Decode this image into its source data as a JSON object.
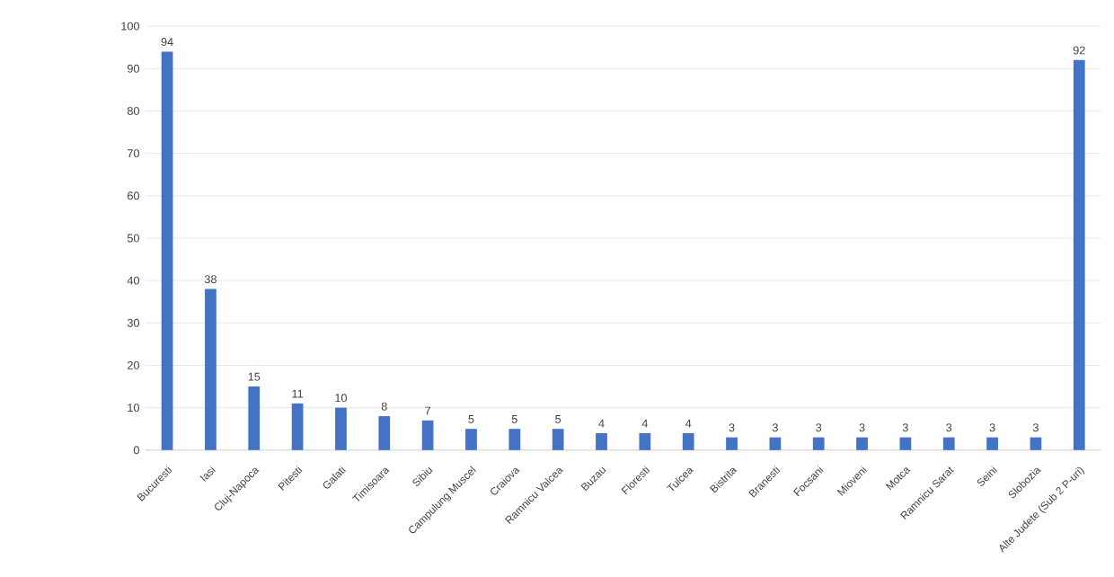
{
  "chart_data": {
    "type": "bar",
    "categories": [
      "Bucuresti",
      "Iasi",
      "Cluj-Napoca",
      "Pitesti",
      "Galati",
      "Timisoara",
      "Sibiu",
      "Campulung Muscel",
      "Craiova",
      "Ramnicu Valcea",
      "Buzau",
      "Floresti",
      "Tulcea",
      "Bistrita",
      "Branesti",
      "Focsani",
      "Mioveni",
      "Motca",
      "Ramnicu Sarat",
      "Seini",
      "Slobozia",
      "Alte Judete (Sub 2 P-uri)"
    ],
    "values": [
      94,
      38,
      15,
      11,
      10,
      8,
      7,
      5,
      5,
      5,
      4,
      4,
      4,
      3,
      3,
      3,
      3,
      3,
      3,
      3,
      3,
      92
    ],
    "color": "#4472c4",
    "ylim": [
      0,
      100
    ],
    "yticks": [
      0,
      10,
      20,
      30,
      40,
      50,
      60,
      70,
      80,
      90,
      100
    ],
    "grid": "y",
    "data_labels": true
  }
}
